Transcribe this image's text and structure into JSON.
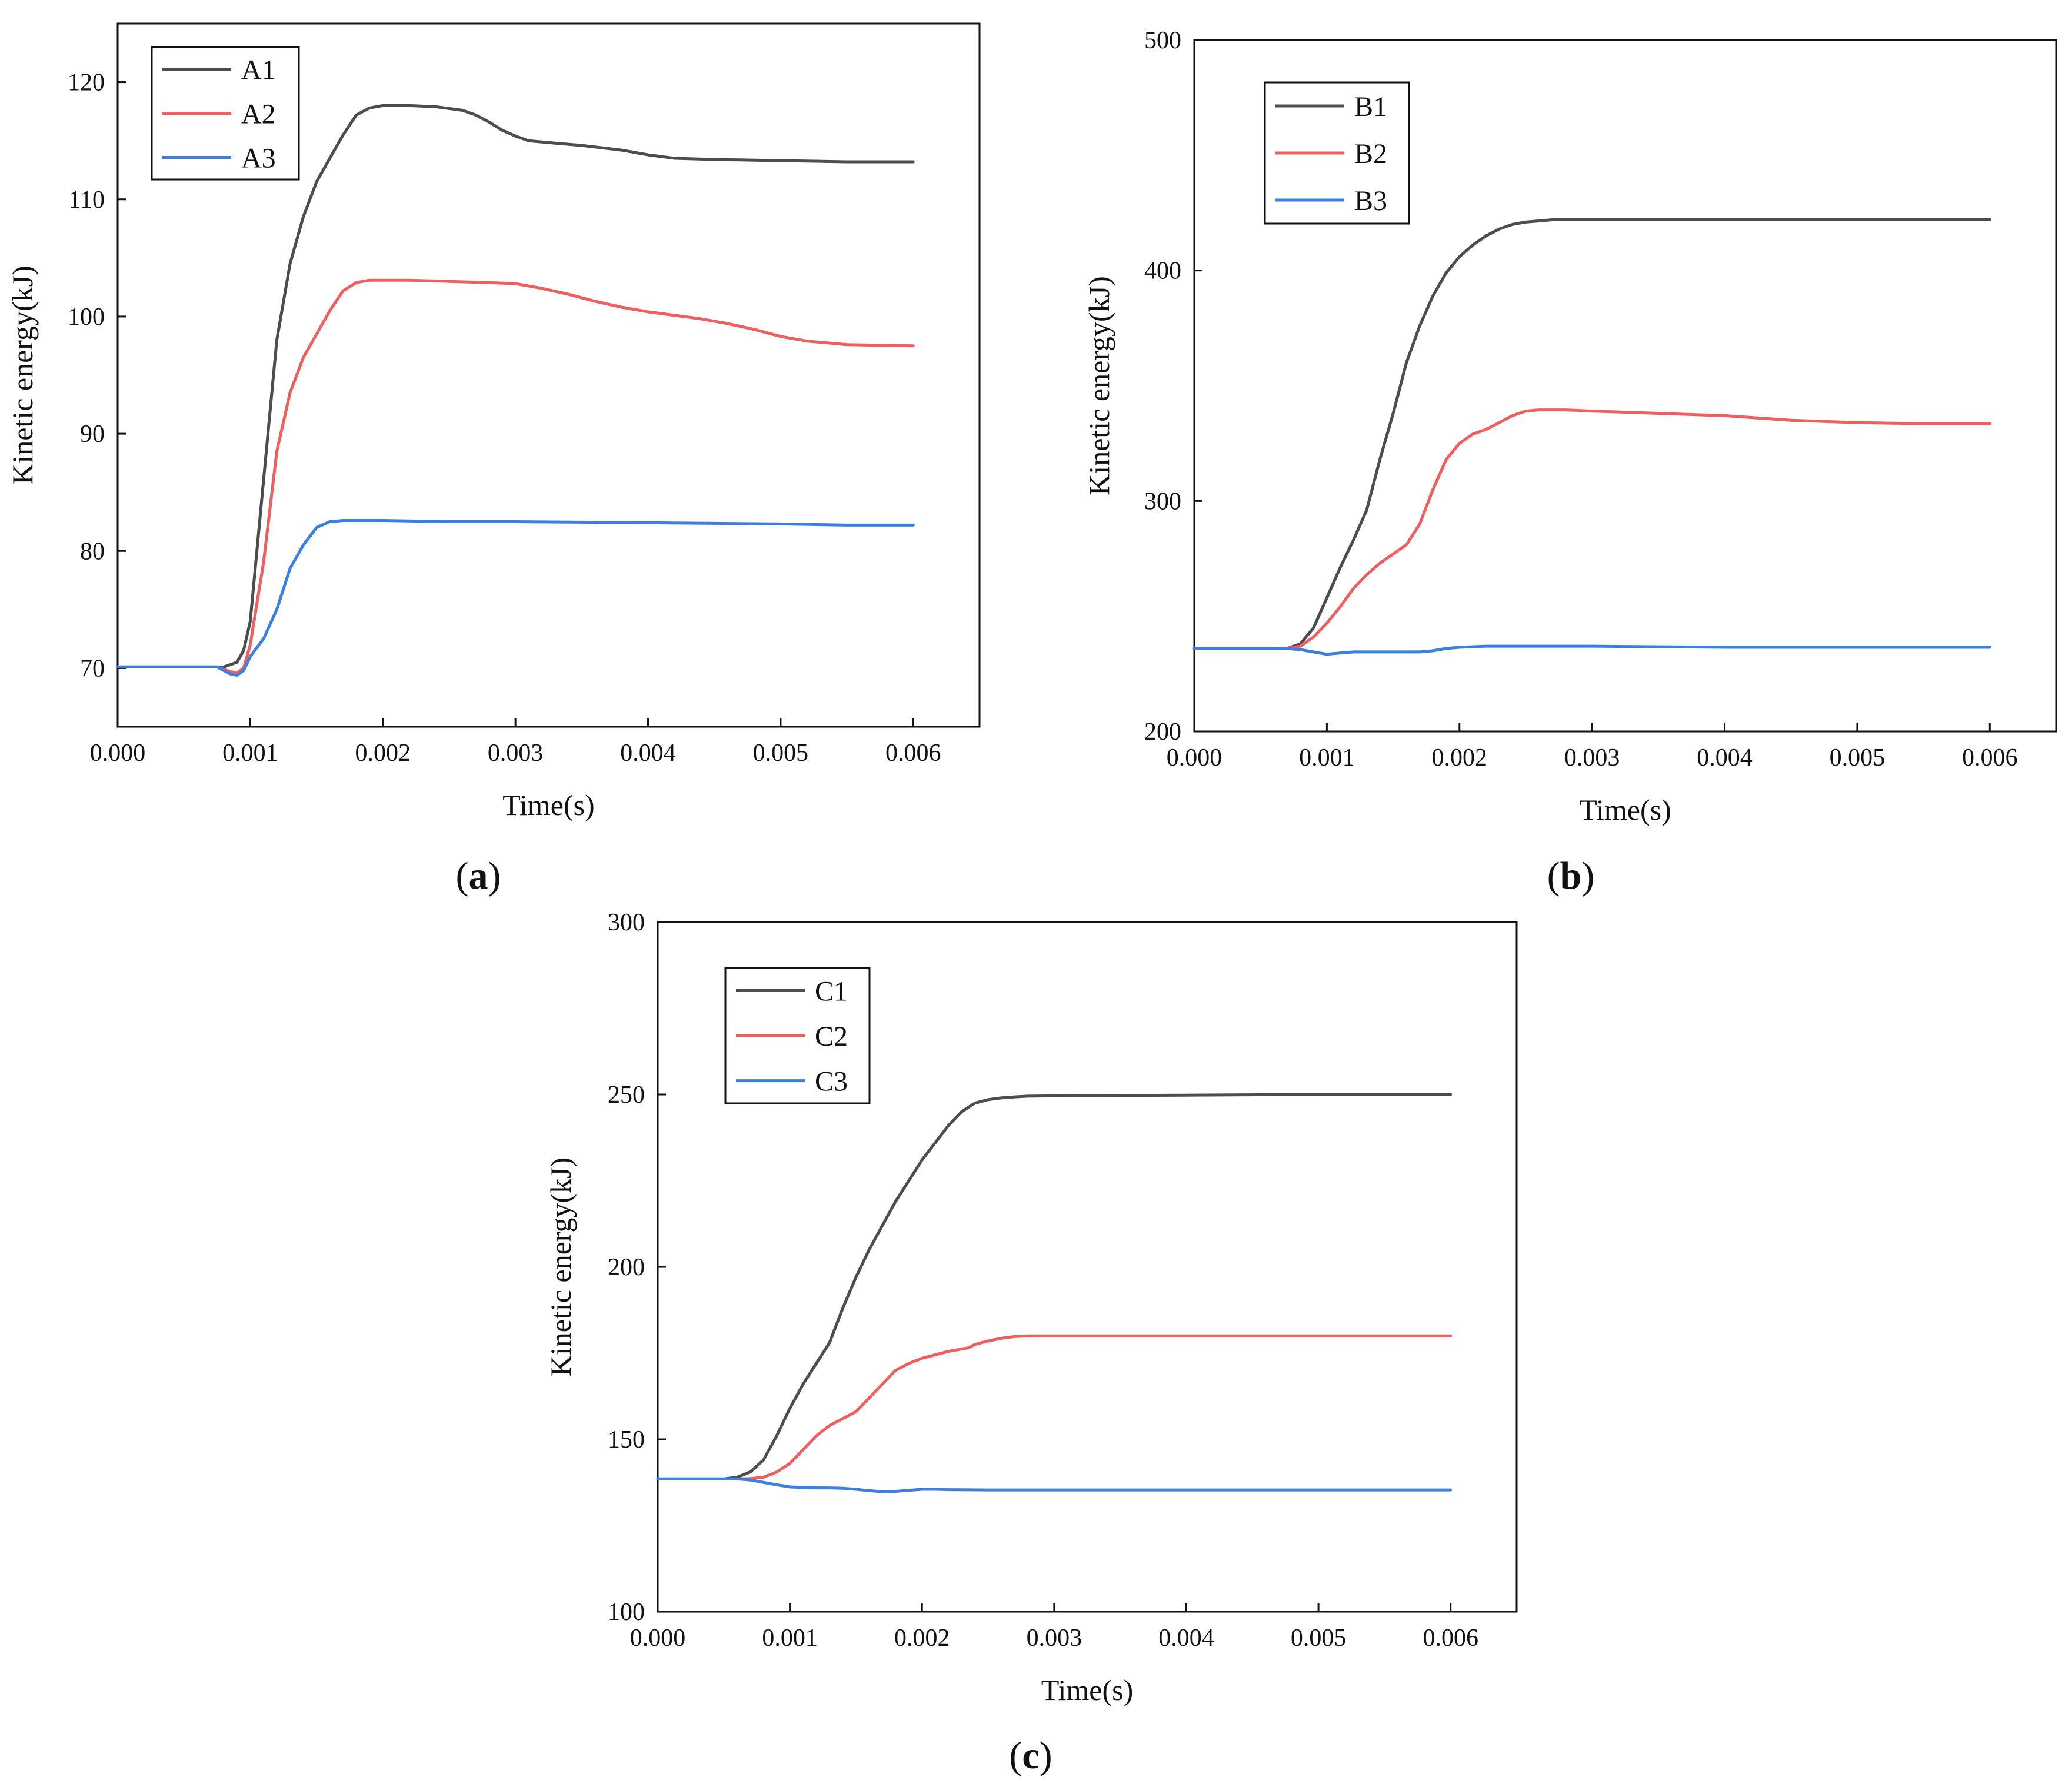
{
  "chart_data": [
    {
      "type": "line",
      "panel_label": "a",
      "xlabel": "Time(s)",
      "ylabel": "Kinetic energy(kJ)",
      "xlim": [
        0,
        0.0065
      ],
      "ylim": [
        65,
        125
      ],
      "xticks": [
        0,
        0.001,
        0.002,
        0.003,
        0.004,
        0.005,
        0.006
      ],
      "xtick_labels": [
        "0.000",
        "0.001",
        "0.002",
        "0.003",
        "0.004",
        "0.005",
        "0.006"
      ],
      "yticks": [
        70,
        80,
        90,
        100,
        110,
        120
      ],
      "ytick_labels": [
        "70",
        "80",
        "90",
        "100",
        "110",
        "120"
      ],
      "legend_position": "top-left",
      "series": [
        {
          "name": "A1",
          "color": "#4d4d4d",
          "x": [
            0,
            0.0008,
            0.0009,
            0.00095,
            0.001,
            0.0011,
            0.0012,
            0.0013,
            0.0014,
            0.0015,
            0.0016,
            0.0017,
            0.0018,
            0.0019,
            0.002,
            0.0022,
            0.0024,
            0.0026,
            0.0027,
            0.0028,
            0.0029,
            0.003,
            0.0031,
            0.0033,
            0.0035,
            0.0038,
            0.004,
            0.0042,
            0.0045,
            0.005,
            0.0055,
            0.006
          ],
          "y": [
            70.1,
            70.1,
            70.5,
            71.5,
            74,
            86,
            98,
            104.5,
            108.5,
            111.5,
            113.5,
            115.5,
            117.2,
            117.8,
            118,
            118,
            117.9,
            117.6,
            117.2,
            116.6,
            115.9,
            115.4,
            115,
            114.8,
            114.6,
            114.2,
            113.8,
            113.5,
            113.4,
            113.3,
            113.2,
            113.2
          ]
        },
        {
          "name": "A2",
          "color": "#ee5f5f",
          "x": [
            0,
            0.00075,
            0.00085,
            0.0009,
            0.00095,
            0.001,
            0.0011,
            0.0012,
            0.0013,
            0.0014,
            0.0015,
            0.0016,
            0.0017,
            0.0018,
            0.0019,
            0.002,
            0.0022,
            0.0025,
            0.0028,
            0.003,
            0.0032,
            0.0034,
            0.0036,
            0.0038,
            0.004,
            0.0042,
            0.0044,
            0.0046,
            0.0048,
            0.005,
            0.0052,
            0.0055,
            0.006
          ],
          "y": [
            70.1,
            70.1,
            69.7,
            69.6,
            70,
            72,
            79,
            88.5,
            93.5,
            96.5,
            98.5,
            100.5,
            102.2,
            102.9,
            103.1,
            103.1,
            103.1,
            103,
            102.9,
            102.8,
            102.4,
            101.9,
            101.3,
            100.8,
            100.4,
            100.1,
            99.8,
            99.4,
            98.9,
            98.3,
            97.9,
            97.6,
            97.5
          ]
        },
        {
          "name": "A3",
          "color": "#3d7fe0",
          "x": [
            0,
            0.00075,
            0.00085,
            0.0009,
            0.00095,
            0.001,
            0.0011,
            0.0012,
            0.0013,
            0.0014,
            0.0015,
            0.0016,
            0.0017,
            0.0018,
            0.002,
            0.0025,
            0.003,
            0.004,
            0.005,
            0.0055,
            0.006
          ],
          "y": [
            70.1,
            70.1,
            69.5,
            69.4,
            69.8,
            71,
            72.5,
            75,
            78.5,
            80.5,
            82,
            82.5,
            82.6,
            82.6,
            82.6,
            82.5,
            82.5,
            82.4,
            82.3,
            82.2,
            82.2
          ]
        }
      ]
    },
    {
      "type": "line",
      "panel_label": "b",
      "xlabel": "Time(s)",
      "ylabel": "Kinetic energy(kJ)",
      "xlim": [
        0,
        0.0065
      ],
      "ylim": [
        200,
        500
      ],
      "xticks": [
        0,
        0.001,
        0.002,
        0.003,
        0.004,
        0.005,
        0.006
      ],
      "xtick_labels": [
        "0.000",
        "0.001",
        "0.002",
        "0.003",
        "0.004",
        "0.005",
        "0.006"
      ],
      "yticks": [
        200,
        300,
        400,
        500
      ],
      "ytick_labels": [
        "200",
        "300",
        "400",
        "500"
      ],
      "legend_position": "top-left",
      "series": [
        {
          "name": "B1",
          "color": "#4d4d4d",
          "x": [
            0,
            0.0007,
            0.0008,
            0.0009,
            0.001,
            0.0011,
            0.0012,
            0.0013,
            0.0014,
            0.0015,
            0.0016,
            0.0017,
            0.0018,
            0.0019,
            0.002,
            0.0021,
            0.0022,
            0.0023,
            0.0024,
            0.0025,
            0.0026,
            0.0027,
            0.003,
            0.004,
            0.005,
            0.006
          ],
          "y": [
            236,
            236,
            238,
            245,
            258,
            271,
            283,
            296,
            318,
            338,
            360,
            376,
            389,
            399,
            406,
            411,
            415,
            418,
            420,
            421,
            421.5,
            422,
            422,
            422,
            422,
            422
          ]
        },
        {
          "name": "B2",
          "color": "#ee5f5f",
          "x": [
            0,
            0.0007,
            0.0008,
            0.0009,
            0.001,
            0.0011,
            0.0012,
            0.0013,
            0.0014,
            0.0015,
            0.0016,
            0.0017,
            0.0018,
            0.0019,
            0.002,
            0.0021,
            0.0022,
            0.0023,
            0.0024,
            0.0025,
            0.0026,
            0.0028,
            0.003,
            0.0035,
            0.004,
            0.0045,
            0.005,
            0.0055,
            0.006
          ],
          "y": [
            236,
            236,
            237,
            241,
            247,
            254,
            262,
            268,
            273,
            277,
            281,
            290,
            305,
            318,
            325,
            329,
            331,
            334,
            337,
            339,
            339.5,
            339.5,
            339,
            338,
            337,
            335,
            334,
            333.5,
            333.5
          ]
        },
        {
          "name": "B3",
          "color": "#3d7fe0",
          "x": [
            0,
            0.0007,
            0.0008,
            0.0009,
            0.001,
            0.0011,
            0.0012,
            0.0013,
            0.0014,
            0.0015,
            0.0016,
            0.0017,
            0.0018,
            0.0019,
            0.002,
            0.0022,
            0.0025,
            0.003,
            0.004,
            0.005,
            0.006
          ],
          "y": [
            236,
            236,
            235.5,
            234.5,
            233.5,
            234,
            234.5,
            234.5,
            234.5,
            234.5,
            234.5,
            234.5,
            235,
            236,
            236.5,
            237,
            237,
            237,
            236.5,
            236.5,
            236.5
          ]
        }
      ]
    },
    {
      "type": "line",
      "panel_label": "c",
      "xlabel": "Time(s)",
      "ylabel": "Kinetic energy(kJ)",
      "xlim": [
        0,
        0.0065
      ],
      "ylim": [
        100,
        300
      ],
      "xticks": [
        0,
        0.001,
        0.002,
        0.003,
        0.004,
        0.005,
        0.006
      ],
      "xtick_labels": [
        "0.000",
        "0.001",
        "0.002",
        "0.003",
        "0.004",
        "0.005",
        "0.006"
      ],
      "yticks": [
        100,
        150,
        200,
        250,
        300
      ],
      "ytick_labels": [
        "100",
        "150",
        "200",
        "250",
        "300"
      ],
      "legend_position": "top-left",
      "series": [
        {
          "name": "C1",
          "color": "#4d4d4d",
          "x": [
            0,
            0.0005,
            0.0006,
            0.0007,
            0.0008,
            0.0009,
            0.001,
            0.0011,
            0.0012,
            0.0013,
            0.0014,
            0.0015,
            0.0016,
            0.0017,
            0.0018,
            0.0019,
            0.002,
            0.0021,
            0.0022,
            0.0023,
            0.0024,
            0.0025,
            0.0026,
            0.0027,
            0.0028,
            0.003,
            0.004,
            0.005,
            0.006
          ],
          "y": [
            138.5,
            138.5,
            139,
            140.5,
            144,
            151,
            159,
            166,
            172,
            178,
            188,
            197,
            205,
            212,
            219,
            225,
            231,
            236,
            241,
            245,
            247.5,
            248.5,
            249,
            249.3,
            249.5,
            249.6,
            249.8,
            250,
            250
          ]
        },
        {
          "name": "C2",
          "color": "#ee5f5f",
          "x": [
            0,
            0.0006,
            0.0007,
            0.0008,
            0.0009,
            0.001,
            0.0011,
            0.0012,
            0.0013,
            0.0014,
            0.0015,
            0.0016,
            0.0017,
            0.0018,
            0.0019,
            0.002,
            0.0021,
            0.0022,
            0.0023,
            0.00235,
            0.0024,
            0.0025,
            0.0026,
            0.0027,
            0.0028,
            0.003,
            0.004,
            0.005,
            0.006
          ],
          "y": [
            138.5,
            138.5,
            138.6,
            139,
            140.5,
            143,
            147,
            151,
            154,
            156,
            158,
            162,
            166,
            170,
            172,
            173.5,
            174.5,
            175.5,
            176.2,
            176.5,
            177.5,
            178.5,
            179.3,
            179.8,
            180,
            180,
            180,
            180,
            180
          ]
        },
        {
          "name": "C3",
          "color": "#3d7fe0",
          "x": [
            0,
            0.0006,
            0.0007,
            0.0008,
            0.0009,
            0.001,
            0.0011,
            0.0012,
            0.0013,
            0.0014,
            0.0015,
            0.0016,
            0.0017,
            0.0018,
            0.0019,
            0.002,
            0.0021,
            0.0022,
            0.0025,
            0.003,
            0.004,
            0.005,
            0.006
          ],
          "y": [
            138.5,
            138.5,
            138.2,
            137.5,
            136.8,
            136.2,
            136,
            135.9,
            135.9,
            135.8,
            135.5,
            135.1,
            134.8,
            134.9,
            135.2,
            135.5,
            135.5,
            135.4,
            135.3,
            135.3,
            135.3,
            135.3,
            135.3
          ]
        }
      ]
    }
  ]
}
